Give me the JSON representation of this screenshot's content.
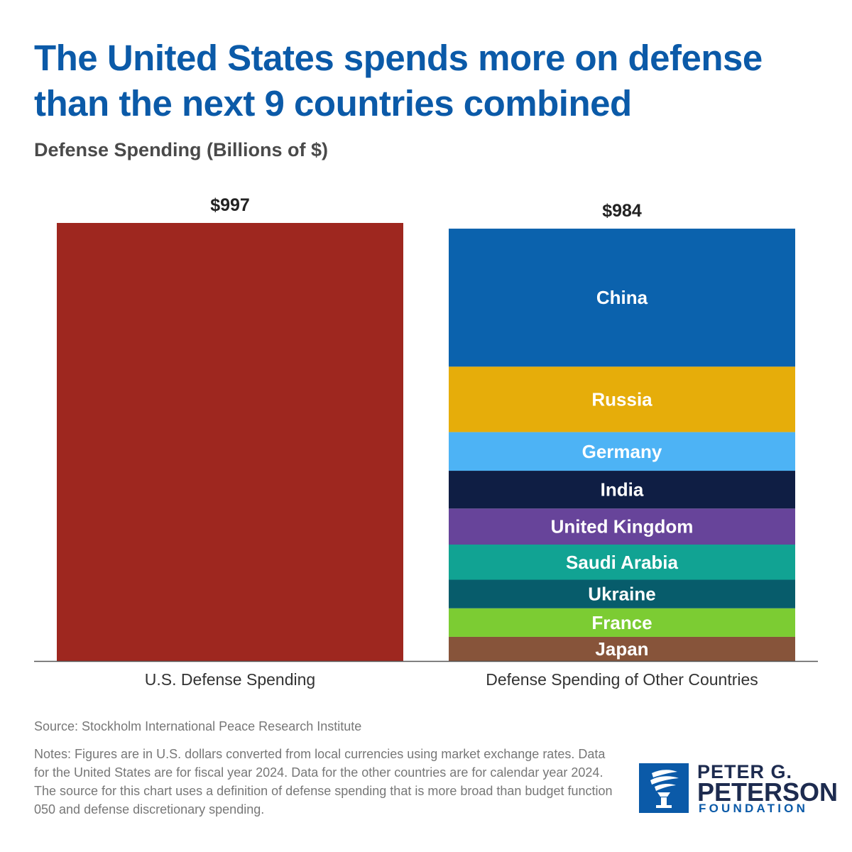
{
  "header": {
    "title": "The United States spends more on defense than the next 9 countries combined",
    "subtitle": "Defense Spending (Billions of $)"
  },
  "chart_data": {
    "type": "bar",
    "stacked": true,
    "ylabel": "Defense Spending (Billions of $)",
    "ylim": [
      0,
      997
    ],
    "grid": false,
    "categories": [
      "U.S. Defense Spending",
      "Defense Spending of Other Countries"
    ],
    "totals": [
      {
        "category": "U.S. Defense Spending",
        "label": "$997",
        "value": 997
      },
      {
        "category": "Defense Spending of Other Countries",
        "label": "$984",
        "value": 984
      }
    ],
    "series": [
      {
        "name": "United States",
        "category": "U.S. Defense Spending",
        "value": 997,
        "color": "#9e271f",
        "show_label": false
      },
      {
        "name": "China",
        "category": "Defense Spending of Other Countries",
        "value": 314,
        "color": "#0b62ad",
        "show_label": true
      },
      {
        "name": "Russia",
        "category": "Defense Spending of Other Countries",
        "value": 149,
        "color": "#e6ad0a",
        "show_label": true
      },
      {
        "name": "Germany",
        "category": "Defense Spending of Other Countries",
        "value": 88,
        "color": "#4db3f5",
        "show_label": true
      },
      {
        "name": "India",
        "category": "Defense Spending of Other Countries",
        "value": 86,
        "color": "#0f1e44",
        "show_label": true
      },
      {
        "name": "United Kingdom",
        "category": "Defense Spending of Other Countries",
        "value": 82,
        "color": "#67449a",
        "show_label": true
      },
      {
        "name": "Saudi Arabia",
        "category": "Defense Spending of Other Countries",
        "value": 80,
        "color": "#11a393",
        "show_label": true
      },
      {
        "name": "Ukraine",
        "category": "Defense Spending of Other Countries",
        "value": 65,
        "color": "#075c6b",
        "show_label": true
      },
      {
        "name": "France",
        "category": "Defense Spending of Other Countries",
        "value": 65,
        "color": "#7ccc33",
        "show_label": true
      },
      {
        "name": "Japan",
        "category": "Defense Spending of Other Countries",
        "value": 55,
        "color": "#87543a",
        "show_label": true
      }
    ],
    "colors": {
      "label_text": "#ffffff",
      "axis_line": "#555555",
      "value_text": "#222222",
      "category_text": "#333333"
    }
  },
  "footer": {
    "source": "Source: Stockholm International Peace Research Institute",
    "notes": "Notes: Figures are in U.S. dollars converted from local currencies using market exchange rates. Data for the United States are for fiscal year 2024. Data for the other countries are for calendar year 2024. The source for this chart uses a definition of defense spending that is more broad than budget function 050 and defense discretionary spending."
  },
  "logo": {
    "line1": "PETER G.",
    "line2": "PETERSON",
    "line3": "FOUNDATION",
    "icon": "torch-icon",
    "brand_color": "#0b5aa8"
  }
}
